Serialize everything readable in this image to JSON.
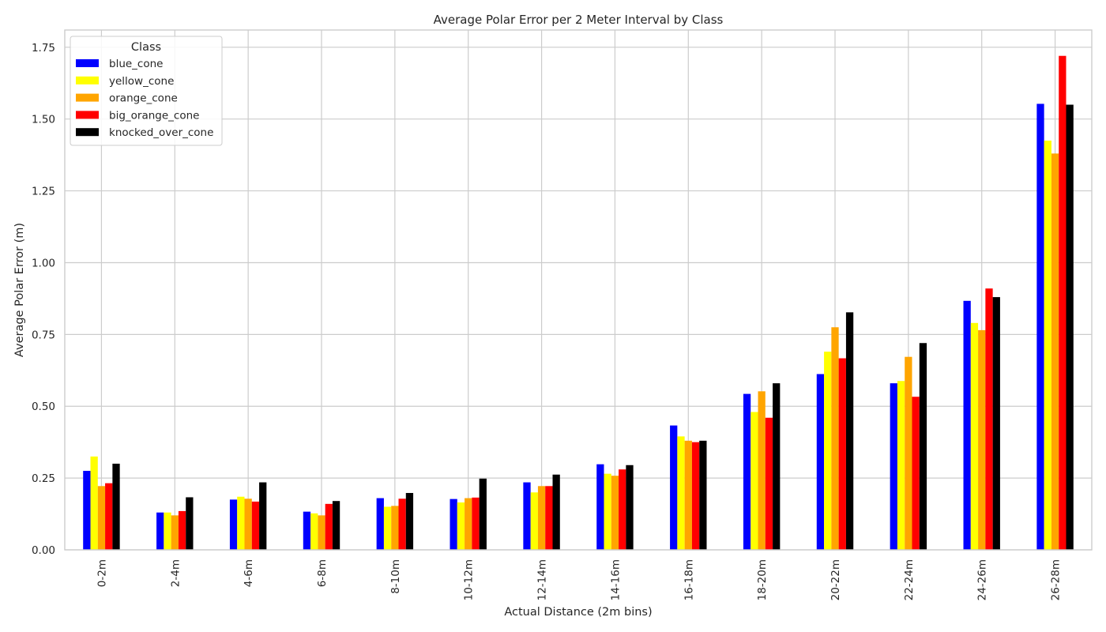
{
  "chart_data": {
    "type": "bar",
    "title": "Average Polar Error per 2 Meter Interval by Class",
    "xlabel": "Actual Distance (2m bins)",
    "ylabel": "Average Polar Error (m)",
    "ylim": [
      0,
      1.81
    ],
    "yticks": [
      0.0,
      0.25,
      0.5,
      0.75,
      1.0,
      1.25,
      1.5,
      1.75
    ],
    "ytick_labels": [
      "0.00",
      "0.25",
      "0.50",
      "0.75",
      "1.00",
      "1.25",
      "1.50",
      "1.75"
    ],
    "grid": true,
    "legend": {
      "title": "Class",
      "placement": "top-left"
    },
    "categories": [
      "0-2m",
      "2-4m",
      "4-6m",
      "6-8m",
      "8-10m",
      "10-12m",
      "12-14m",
      "14-16m",
      "16-18m",
      "18-20m",
      "20-22m",
      "22-24m",
      "24-26m",
      "26-28m"
    ],
    "series": [
      {
        "name": "blue_cone",
        "color": "#0000ff",
        "values": [
          0.275,
          0.13,
          0.175,
          0.133,
          0.18,
          0.177,
          0.235,
          0.298,
          0.433,
          0.543,
          0.612,
          0.58,
          0.867,
          1.553
        ]
      },
      {
        "name": "yellow_cone",
        "color": "#ffff00",
        "values": [
          0.325,
          0.13,
          0.185,
          0.127,
          0.15,
          0.165,
          0.2,
          0.265,
          0.395,
          0.48,
          0.69,
          0.588,
          0.79,
          1.425
        ]
      },
      {
        "name": "orange_cone",
        "color": "#ffa500",
        "values": [
          0.222,
          0.12,
          0.178,
          0.12,
          0.153,
          0.18,
          0.222,
          0.258,
          0.38,
          0.552,
          0.775,
          0.672,
          0.765,
          1.38
        ]
      },
      {
        "name": "big_orange_cone",
        "color": "#ff0000",
        "values": [
          0.232,
          0.135,
          0.168,
          0.16,
          0.178,
          0.182,
          0.222,
          0.28,
          0.375,
          0.46,
          0.667,
          0.533,
          0.91,
          1.72
        ]
      },
      {
        "name": "knocked_over_cone",
        "color": "#000000",
        "values": [
          0.3,
          0.183,
          0.235,
          0.17,
          0.198,
          0.248,
          0.262,
          0.295,
          0.38,
          0.58,
          0.827,
          0.72,
          0.88,
          1.55
        ]
      }
    ]
  }
}
